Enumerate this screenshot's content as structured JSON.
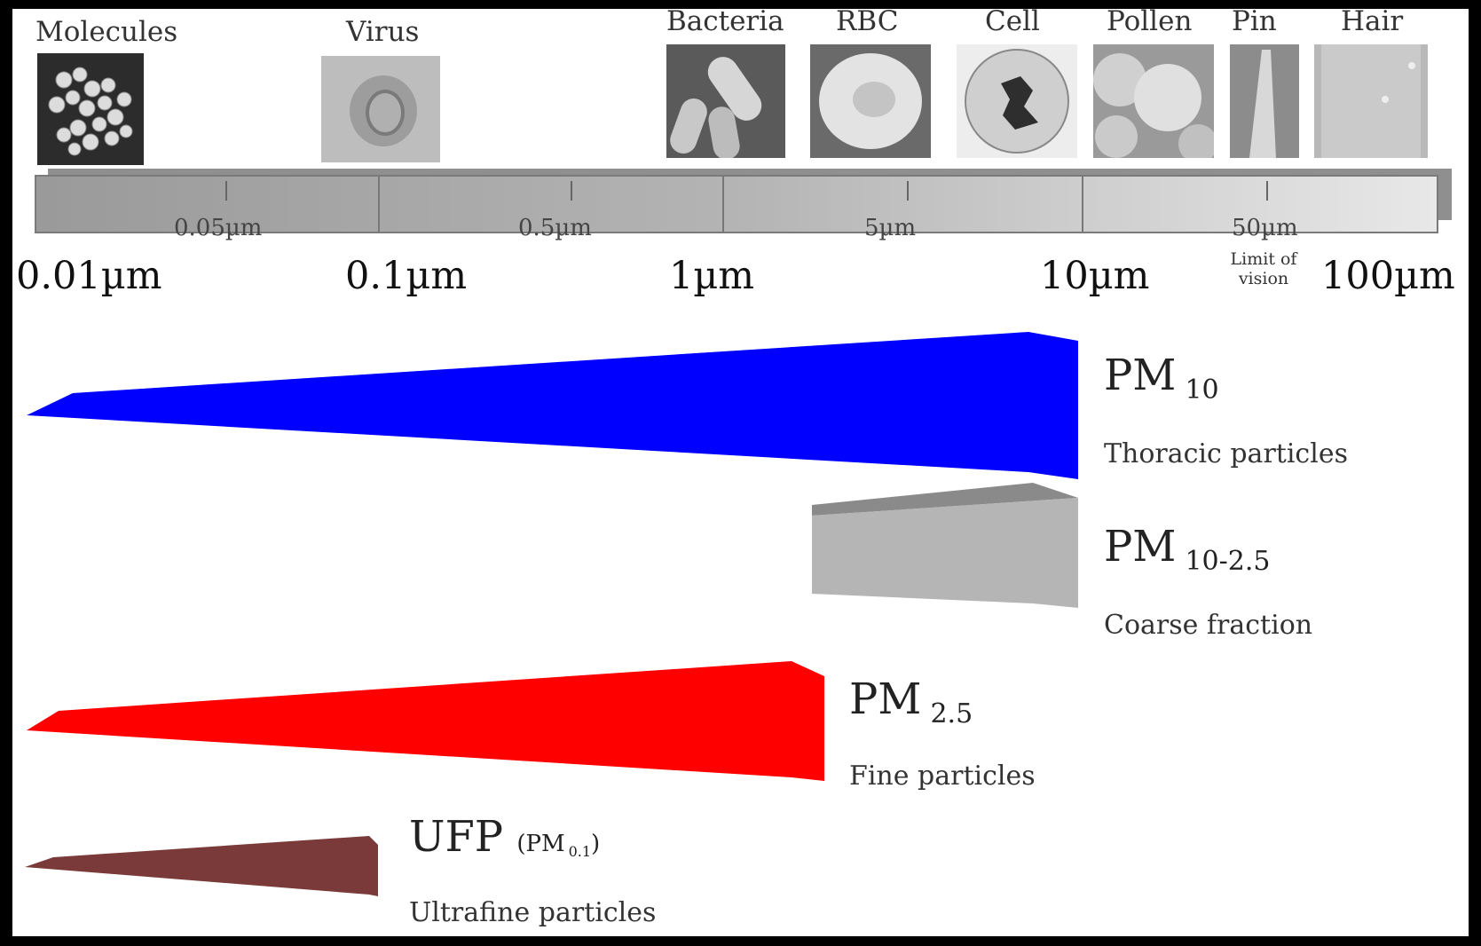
{
  "samples": {
    "molecules": "Molecules",
    "virus": "Virus",
    "bacteria": "Bacteria",
    "rbc": "RBC",
    "cell": "Cell",
    "pollen": "Pollen",
    "pin": "Pin",
    "hair": "Hair"
  },
  "scale": {
    "minor_ticks": [
      "0.05µm",
      "0.5µm",
      "5µm",
      "50µm"
    ],
    "major_ticks": [
      "0.01µm",
      "0.1µm",
      "1µm",
      "10µm",
      "100µm"
    ],
    "vision_note": [
      "Limit of",
      "vision"
    ]
  },
  "ranges": {
    "pm10": {
      "name": "PM",
      "sub": "10",
      "desc": "Thoracic particles",
      "color": "#0000ff"
    },
    "pm10_25": {
      "name": "PM",
      "sub": "10-2.5",
      "desc": "Coarse fraction",
      "color": "#b5b5b5"
    },
    "pm25": {
      "name": "PM",
      "sub": "2.5",
      "desc": "Fine particles",
      "color": "#ff0000"
    },
    "ufp": {
      "name": "UFP",
      "paren_open": "(PM",
      "paren_sub": "0.1",
      "paren_close": ")",
      "desc": "Ultrafine particles",
      "color": "#7b3a3a"
    }
  }
}
